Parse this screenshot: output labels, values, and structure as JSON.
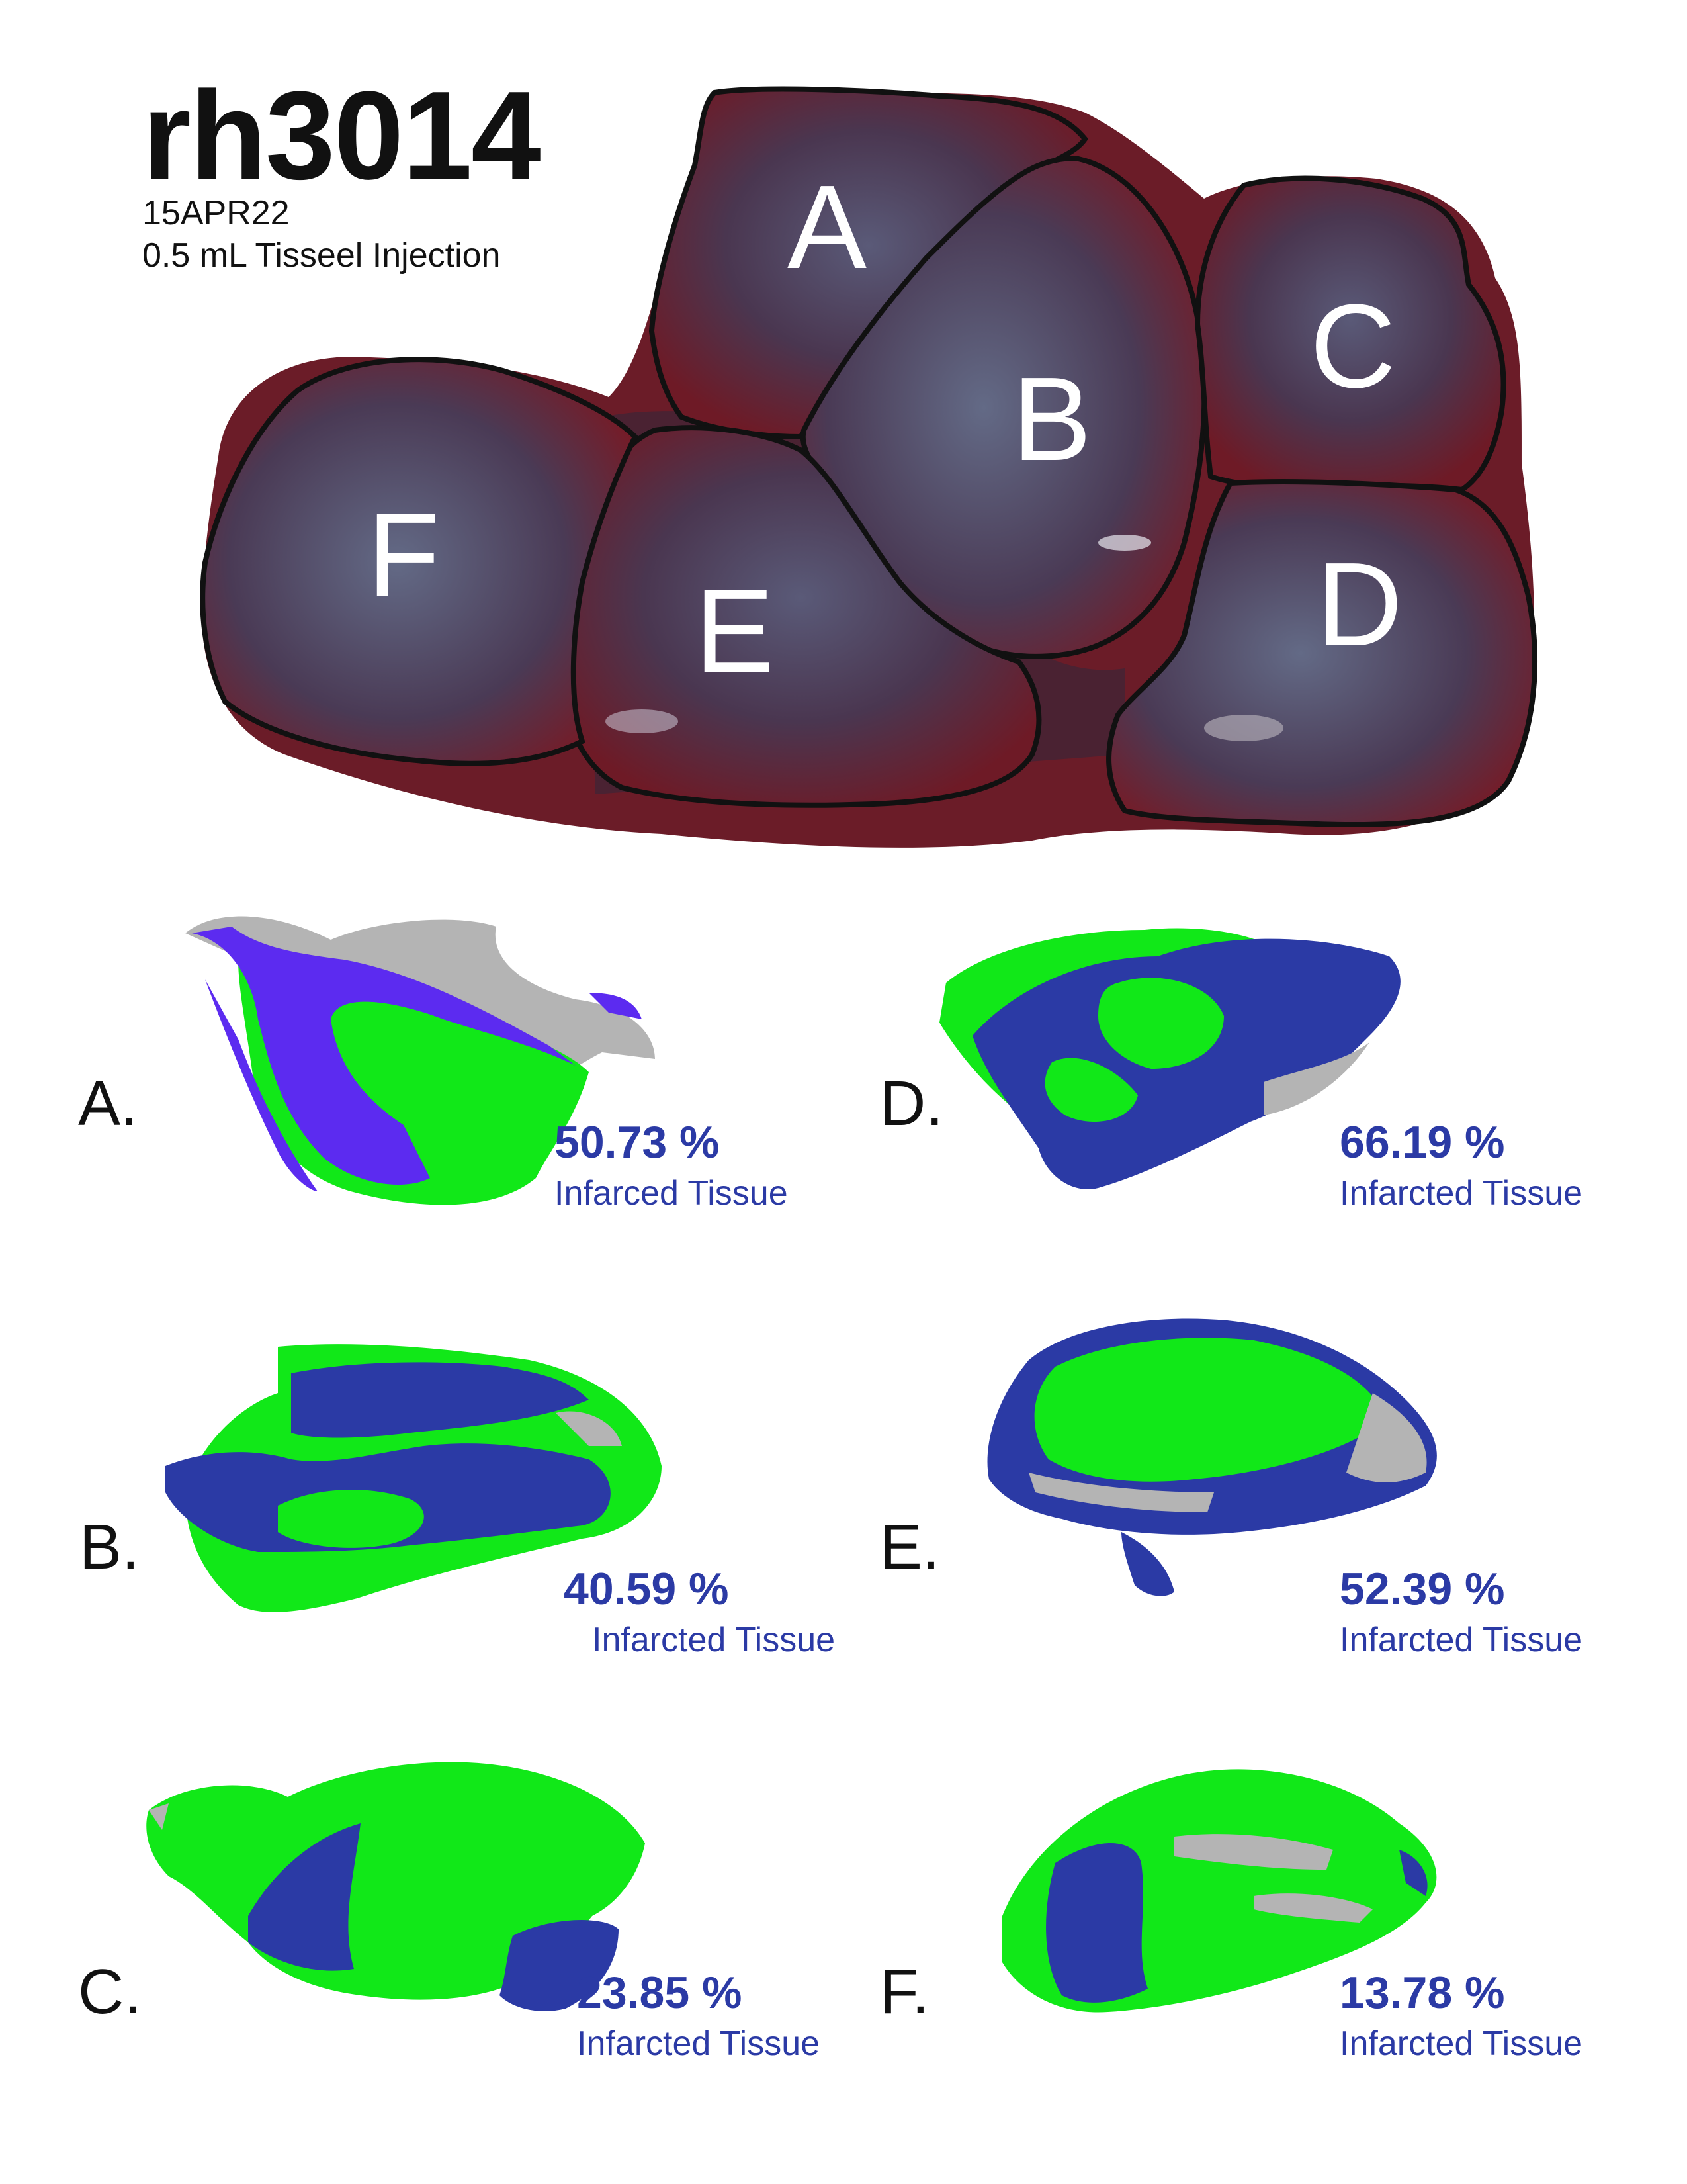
{
  "header": {
    "subject_id": "rh3014",
    "date": "15APR22",
    "treatment": "0.5 mL Tisseel Injection"
  },
  "colors": {
    "tissue_dark": "#4a1a26",
    "tissue_blue": "#4b4f6d",
    "tissue_red": "#8e1420",
    "outline": "#111111",
    "healthy_green": "#11e818",
    "infarct_blue": "#2b3aa5",
    "infarct_violet": "#5c2bf0",
    "unassigned_gray": "#b4b4b4",
    "text_blue": "#2b3aa5"
  },
  "photo_regions": [
    {
      "letter": "A"
    },
    {
      "letter": "B"
    },
    {
      "letter": "C"
    },
    {
      "letter": "D"
    },
    {
      "letter": "E"
    },
    {
      "letter": "F"
    }
  ],
  "panels": [
    {
      "letter": "A.",
      "percent": "50.73 %",
      "caption": "Infarced Tissue",
      "fraction": 0.5073
    },
    {
      "letter": "D.",
      "percent": "66.19 %",
      "caption": "Infarcted Tissue",
      "fraction": 0.6619
    },
    {
      "letter": "B.",
      "percent": "40.59 %",
      "caption": "Infarcted Tissue",
      "fraction": 0.4059
    },
    {
      "letter": "E.",
      "percent": "52.39 %",
      "caption": "Infarcted Tissue",
      "fraction": 0.5239
    },
    {
      "letter": "C.",
      "percent": "23.85 %",
      "caption": "Infarcted Tissue",
      "fraction": 0.2385
    },
    {
      "letter": "F.",
      "percent": "13.78 %",
      "caption": "Infarcted Tissue",
      "fraction": 0.1378
    }
  ]
}
